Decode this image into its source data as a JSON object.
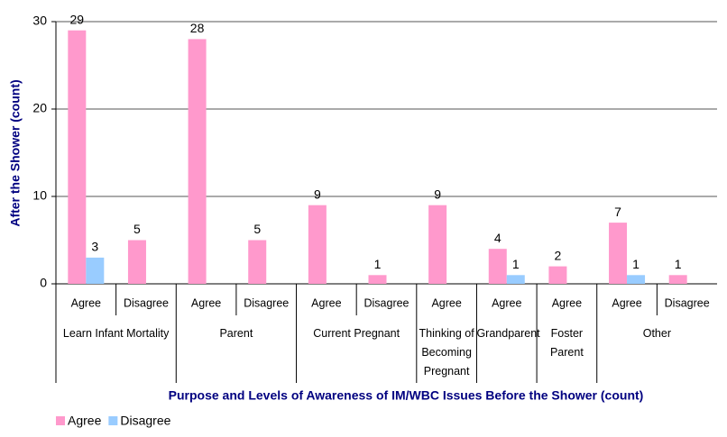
{
  "chart_data": {
    "type": "bar",
    "y_label": "After the Shower (count)",
    "x_label": "Purpose and Levels of Awareness of IM/WBC Issues Before the Shower (count)",
    "groups": [
      {
        "name": "Learn Infant Mortality",
        "categories": [
          "Agree",
          "Disagree"
        ]
      },
      {
        "name": "Parent",
        "categories": [
          "Agree",
          "Disagree"
        ]
      },
      {
        "name": "Current Pregnant",
        "categories": [
          "Agree",
          "Disagree"
        ]
      },
      {
        "name": "Thinking of Becoming Pregnant",
        "categories": [
          "Agree"
        ]
      },
      {
        "name": "Grandparent",
        "categories": [
          "Agree"
        ]
      },
      {
        "name": "Foster Parent",
        "categories": [
          "Agree"
        ]
      },
      {
        "name": "Other",
        "categories": [
          "Agree",
          "Disagree"
        ]
      }
    ],
    "series": [
      {
        "name": "Agree",
        "color": "#ff99cc",
        "values": [
          29,
          5,
          28,
          5,
          9,
          1,
          9,
          4,
          2,
          7,
          1
        ]
      },
      {
        "name": "Disagree",
        "color": "#99ccff",
        "values": [
          3,
          null,
          null,
          null,
          null,
          null,
          null,
          1,
          null,
          1,
          null
        ]
      }
    ],
    "ylim": [
      0,
      30
    ],
    "yticks": [
      0,
      10,
      20,
      30
    ],
    "grid": true,
    "legend": "bottom-left"
  }
}
